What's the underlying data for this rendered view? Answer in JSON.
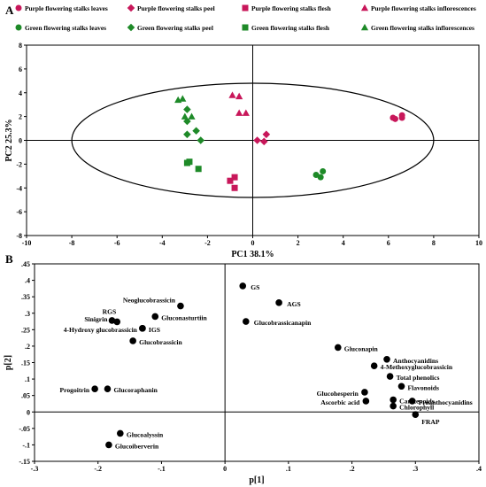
{
  "panel_labels": [
    "A",
    "B"
  ],
  "chart_data": [
    {
      "type": "scatter",
      "panel": "A",
      "xlabel": "PC1 38.1%",
      "ylabel": "PC2 25.3%",
      "xlim": [
        -10,
        10
      ],
      "ylim": [
        -8,
        8
      ],
      "x_ticks": [
        -10,
        -8,
        -6,
        -4,
        -2,
        0,
        2,
        4,
        6,
        8,
        10
      ],
      "y_ticks": [
        -8,
        -6,
        -4,
        -2,
        0,
        2,
        4,
        6,
        8
      ],
      "legend_position": "top",
      "ellipse": {
        "center": [
          0,
          0
        ],
        "radius_x": 8,
        "radius_y": 4.8
      },
      "series": [
        {
          "name": "Purple flowering stalks leaves",
          "color": "#c8175a",
          "marker": "circle",
          "points": [
            [
              6.2,
              1.9
            ],
            [
              6.3,
              1.8
            ],
            [
              6.6,
              1.9
            ],
            [
              6.6,
              2.1
            ]
          ]
        },
        {
          "name": "Purple flowering stalks peel",
          "color": "#c8175a",
          "marker": "diamond",
          "points": [
            [
              0.2,
              0.0
            ],
            [
              0.5,
              -0.1
            ],
            [
              0.6,
              0.5
            ]
          ]
        },
        {
          "name": "Purple flowering stalks flesh",
          "color": "#c8175a",
          "marker": "square",
          "points": [
            [
              -1.0,
              -3.4
            ],
            [
              -0.8,
              -3.1
            ],
            [
              -0.8,
              -4.0
            ]
          ]
        },
        {
          "name": "Purple flowering stalks inflorescences",
          "color": "#c8175a",
          "marker": "triangle",
          "points": [
            [
              -0.9,
              3.8
            ],
            [
              -0.6,
              3.7
            ],
            [
              -0.6,
              2.3
            ],
            [
              -0.3,
              2.3
            ]
          ]
        },
        {
          "name": "Green flowering stalks leaves",
          "color": "#1e8a28",
          "marker": "circle",
          "points": [
            [
              2.8,
              -2.9
            ],
            [
              3.0,
              -3.1
            ],
            [
              3.1,
              -2.6
            ]
          ]
        },
        {
          "name": "Green flowering stalks peel",
          "color": "#1e8a28",
          "marker": "diamond",
          "points": [
            [
              -2.9,
              2.6
            ],
            [
              -2.5,
              0.8
            ],
            [
              -2.3,
              0.0
            ],
            [
              -2.9,
              0.5
            ],
            [
              -2.9,
              1.6
            ]
          ]
        },
        {
          "name": "Green flowering stalks flesh",
          "color": "#1e8a28",
          "marker": "square",
          "points": [
            [
              -2.9,
              -1.9
            ],
            [
              -2.8,
              -1.8
            ],
            [
              -2.4,
              -2.4
            ]
          ]
        },
        {
          "name": "Green flowering stalks inflorescences",
          "color": "#1e8a28",
          "marker": "triangle",
          "points": [
            [
              -3.3,
              3.4
            ],
            [
              -3.1,
              3.5
            ],
            [
              -3.0,
              2.0
            ],
            [
              -2.7,
              2.0
            ]
          ]
        }
      ]
    },
    {
      "type": "scatter",
      "panel": "B",
      "xlabel": "p[1]",
      "ylabel": "p[2]",
      "xlim": [
        -0.3,
        0.4
      ],
      "ylim": [
        -0.15,
        0.45
      ],
      "x_ticks": [
        -0.3,
        -0.2,
        -0.1,
        0,
        0.1,
        0.2,
        0.3,
        0.4
      ],
      "y_ticks": [
        -0.15,
        -0.1,
        -0.05,
        0,
        0.05,
        0.1,
        0.15,
        0.2,
        0.25,
        0.3,
        0.35,
        0.4,
        0.45
      ],
      "points": [
        {
          "label": "GS",
          "x": 0.028,
          "y": 0.383
        },
        {
          "label": "AGS",
          "x": 0.085,
          "y": 0.332
        },
        {
          "label": "Glucobrassicanapin",
          "x": 0.033,
          "y": 0.275
        },
        {
          "label": "Neoglucobrassicin",
          "x": -0.07,
          "y": 0.322
        },
        {
          "label": "Gluconasturtiin",
          "x": -0.11,
          "y": 0.29
        },
        {
          "label": "RGS",
          "x": -0.17,
          "y": 0.274
        },
        {
          "label": "Sinigrin",
          "x": -0.178,
          "y": 0.278
        },
        {
          "label": "4-Hydroxy glucobrassicin",
          "x": -0.13,
          "y": 0.254
        },
        {
          "label": "IGS",
          "x": -0.13,
          "y": 0.254
        },
        {
          "label": "Glucobrassicin",
          "x": -0.145,
          "y": 0.216
        },
        {
          "label": "Gluconapin",
          "x": 0.178,
          "y": 0.196
        },
        {
          "label": "Anthocyanidins",
          "x": 0.255,
          "y": 0.16
        },
        {
          "label": "4-Methoxyglucobrassicin",
          "x": 0.235,
          "y": 0.14
        },
        {
          "label": "Total phenolics",
          "x": 0.26,
          "y": 0.108
        },
        {
          "label": "Flavonoids",
          "x": 0.278,
          "y": 0.078
        },
        {
          "label": "Glucohesperin",
          "x": 0.22,
          "y": 0.06
        },
        {
          "label": "Carotenoids",
          "x": 0.265,
          "y": 0.037
        },
        {
          "label": "Proanthocyanidins",
          "x": 0.295,
          "y": 0.033
        },
        {
          "label": "Ascorbic acid",
          "x": 0.222,
          "y": 0.033
        },
        {
          "label": "Chlorophyll",
          "x": 0.265,
          "y": 0.018
        },
        {
          "label": "FRAP",
          "x": 0.3,
          "y": -0.008
        },
        {
          "label": "Progoitrin",
          "x": -0.205,
          "y": 0.07
        },
        {
          "label": "Glucoraphanin",
          "x": -0.185,
          "y": 0.07
        },
        {
          "label": "Glucoalyssin",
          "x": -0.165,
          "y": -0.065
        },
        {
          "label": "Glucoiberverin",
          "x": -0.183,
          "y": -0.1
        }
      ]
    }
  ]
}
